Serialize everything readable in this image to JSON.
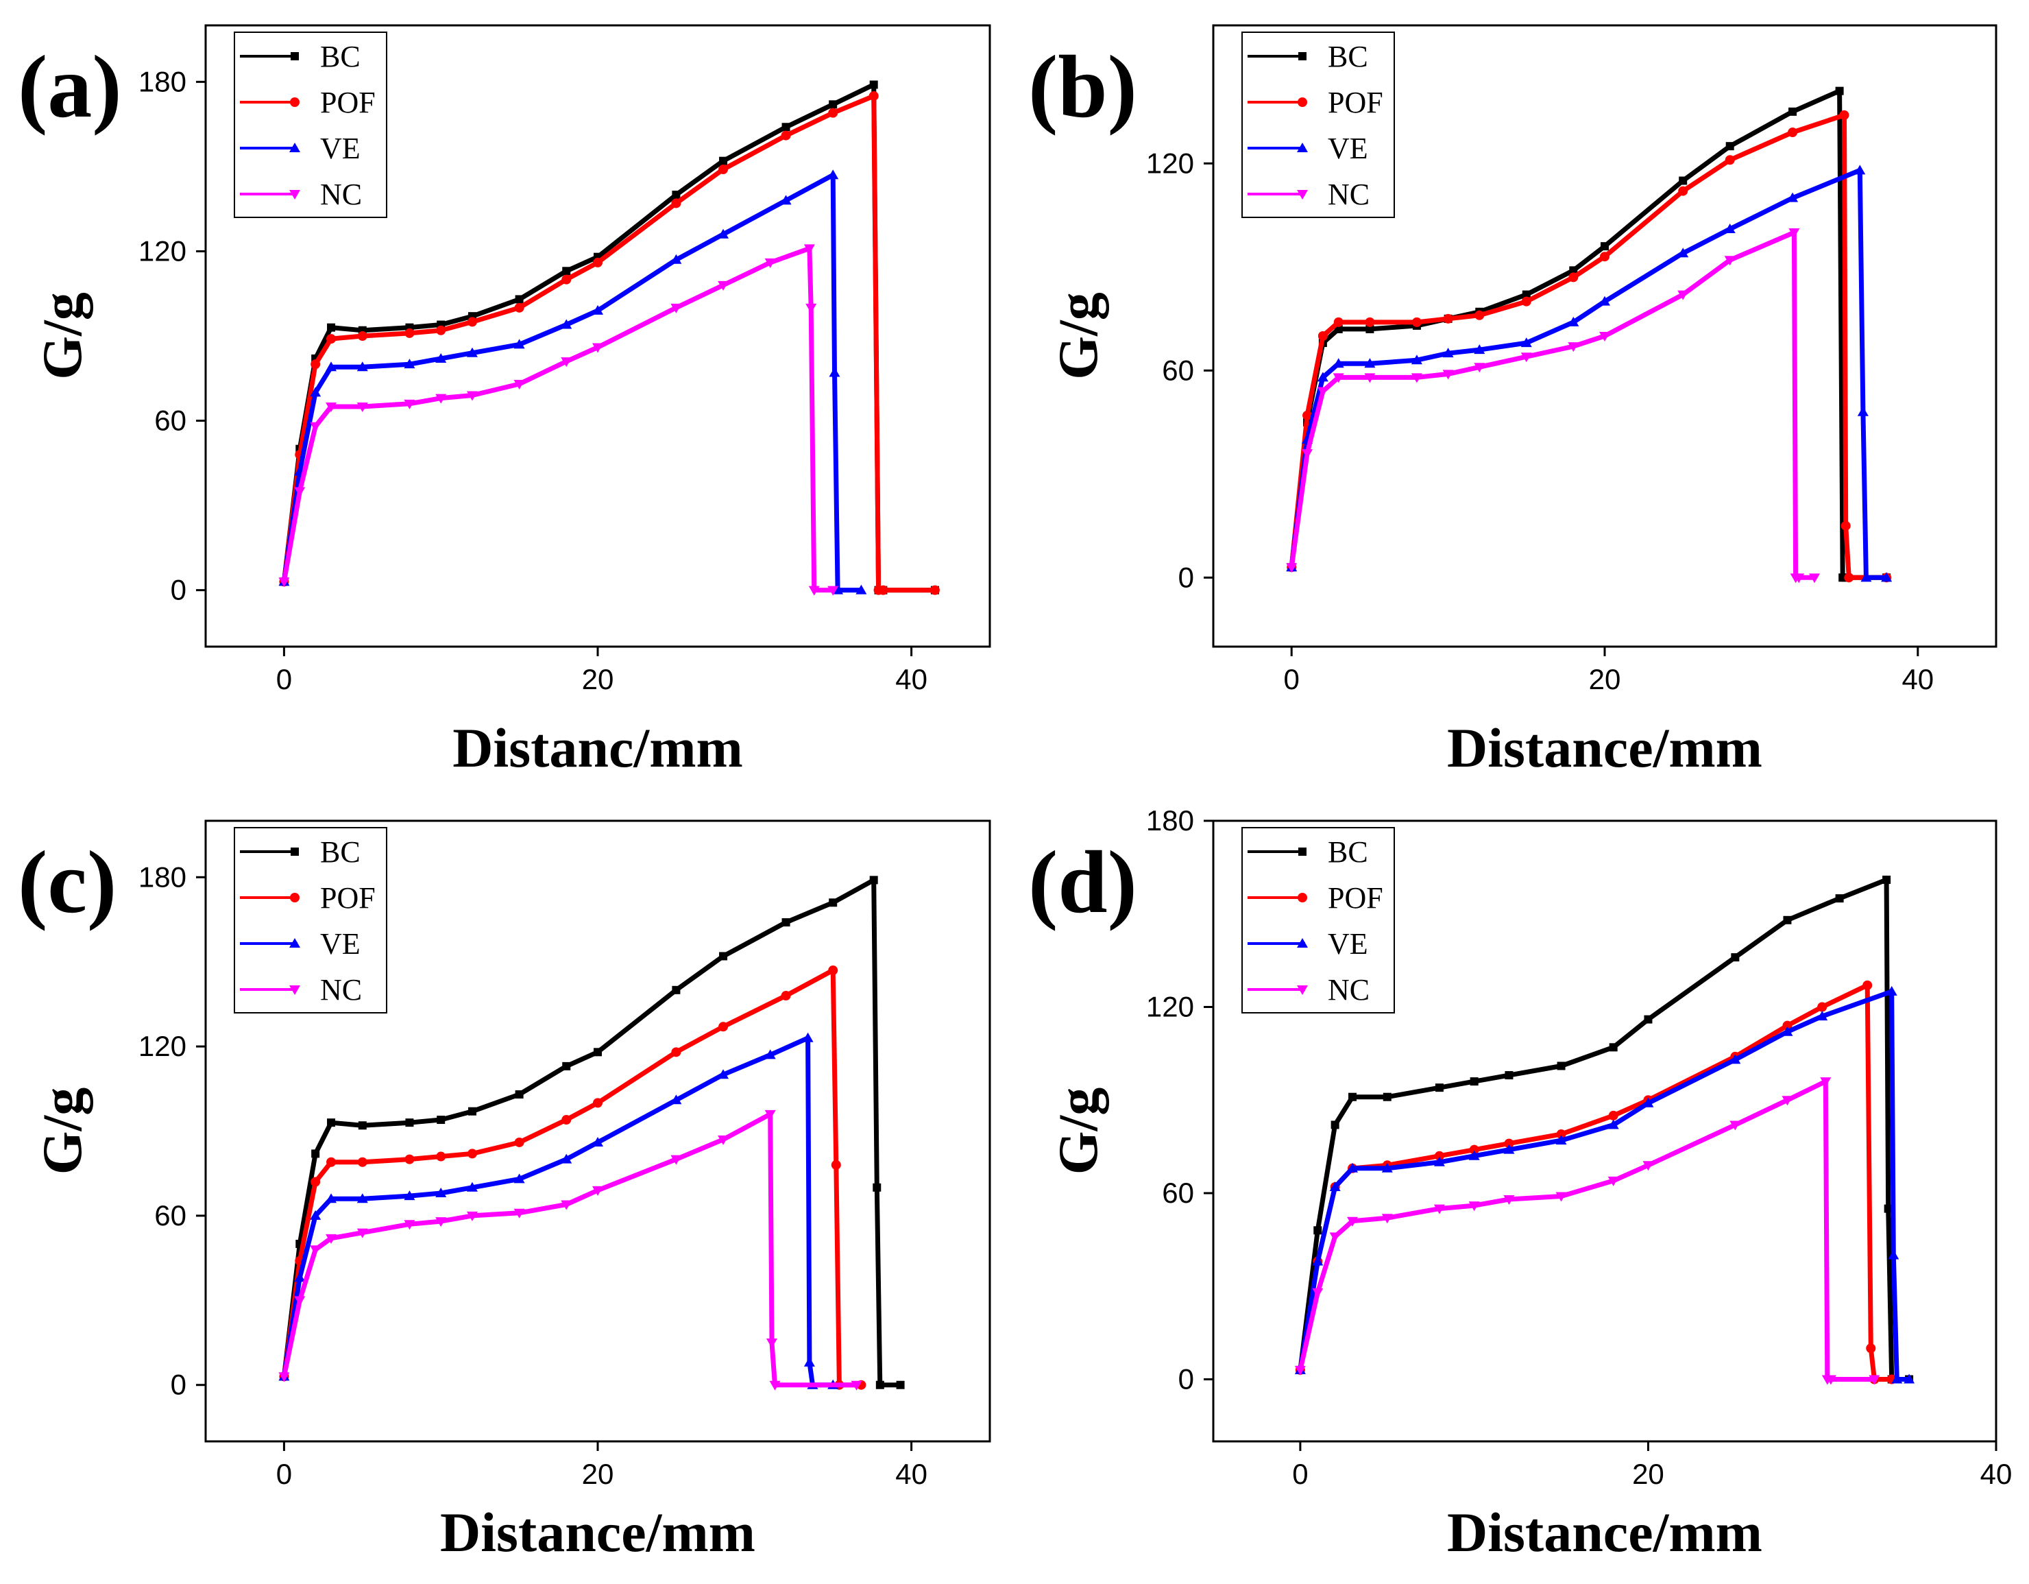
{
  "figure": {
    "panel_labels": [
      "(a)",
      "(b)",
      "(c)",
      "(d)"
    ]
  },
  "series_colors": {
    "BC": "#000000",
    "POF": "#ff0000",
    "VE": "#0000ff",
    "NC": "#ff00ff"
  },
  "chart_data": [
    {
      "panel": "(a)",
      "type": "line",
      "xlabel": "Distanc/mm",
      "ylabel": "G/g",
      "xlim": [
        -5,
        45
      ],
      "ylim": [
        -20,
        200
      ],
      "xticks": [
        0,
        20,
        40
      ],
      "yticks": [
        0,
        60,
        120,
        180
      ],
      "legend": [
        "BC",
        "POF",
        "VE",
        "NC"
      ],
      "series": [
        {
          "name": "BC",
          "x": [
            0,
            1,
            2,
            3,
            5,
            8,
            10,
            12,
            15,
            18,
            20,
            25,
            28,
            32,
            35,
            37.6,
            37.9,
            38.2,
            41.5
          ],
          "y": [
            3,
            50,
            82,
            93,
            92,
            93,
            94,
            97,
            103,
            113,
            118,
            140,
            152,
            164,
            172,
            179,
            0,
            0,
            0
          ]
        },
        {
          "name": "POF",
          "x": [
            0,
            1,
            2,
            3,
            5,
            8,
            10,
            12,
            15,
            18,
            20,
            25,
            28,
            32,
            35,
            37.6,
            37.9,
            38.2,
            41.5
          ],
          "y": [
            3,
            48,
            80,
            89,
            90,
            91,
            92,
            95,
            100,
            110,
            116,
            137,
            149,
            161,
            169,
            175,
            0,
            0,
            0
          ]
        },
        {
          "name": "VE",
          "x": [
            0,
            1,
            2,
            3,
            5,
            8,
            10,
            12,
            15,
            18,
            20,
            25,
            28,
            32,
            35,
            35.1,
            35.3,
            36.8
          ],
          "y": [
            3,
            42,
            70,
            79,
            79,
            80,
            82,
            84,
            87,
            94,
            99,
            117,
            126,
            138,
            147,
            77,
            0,
            0
          ]
        },
        {
          "name": "NC",
          "x": [
            0,
            1,
            2,
            3,
            5,
            8,
            10,
            12,
            15,
            18,
            20,
            25,
            28,
            31,
            33.5,
            33.6,
            33.8,
            35
          ],
          "y": [
            3,
            35,
            58,
            65,
            65,
            66,
            68,
            69,
            73,
            81,
            86,
            100,
            108,
            116,
            121,
            100,
            0,
            0
          ]
        }
      ]
    },
    {
      "panel": "(b)",
      "type": "line",
      "xlabel": "Distance/mm",
      "ylabel": "G/g",
      "xlim": [
        -5,
        45
      ],
      "ylim": [
        -20,
        160
      ],
      "xticks": [
        0,
        20,
        40
      ],
      "yticks": [
        0,
        60,
        120
      ],
      "legend": [
        "BC",
        "POF",
        "VE",
        "NC"
      ],
      "series": [
        {
          "name": "BC",
          "x": [
            0,
            1,
            2,
            3,
            5,
            8,
            10,
            12,
            15,
            18,
            20,
            25,
            28,
            32,
            35,
            35.2,
            35.4,
            38
          ],
          "y": [
            3,
            45,
            68,
            72,
            72,
            73,
            75,
            77,
            82,
            89,
            96,
            115,
            125,
            135,
            141,
            0,
            0,
            0
          ]
        },
        {
          "name": "POF",
          "x": [
            0,
            1,
            2,
            3,
            5,
            8,
            10,
            12,
            15,
            18,
            20,
            25,
            28,
            32,
            35.3,
            35.4,
            35.6,
            38
          ],
          "y": [
            3,
            47,
            70,
            74,
            74,
            74,
            75,
            76,
            80,
            87,
            93,
            112,
            121,
            129,
            134,
            15,
            0,
            0
          ]
        },
        {
          "name": "VE",
          "x": [
            0,
            1,
            2,
            3,
            5,
            8,
            10,
            12,
            15,
            18,
            20,
            25,
            28,
            32,
            36.3,
            36.5,
            36.7,
            38
          ],
          "y": [
            3,
            40,
            58,
            62,
            62,
            63,
            65,
            66,
            68,
            74,
            80,
            94,
            101,
            110,
            118,
            48,
            0,
            0
          ]
        },
        {
          "name": "NC",
          "x": [
            0,
            1,
            2,
            3,
            5,
            8,
            10,
            12,
            15,
            18,
            20,
            25,
            28,
            32.1,
            32.2,
            32.4,
            33.4
          ],
          "y": [
            3,
            36,
            54,
            58,
            58,
            58,
            59,
            61,
            64,
            67,
            70,
            82,
            92,
            100,
            0,
            0,
            0
          ]
        }
      ]
    },
    {
      "panel": "(c)",
      "type": "line",
      "xlabel": "Distance/mm",
      "ylabel": "G/g",
      "xlim": [
        -5,
        45
      ],
      "ylim": [
        -20,
        200
      ],
      "xticks": [
        0,
        20,
        40
      ],
      "yticks": [
        0,
        60,
        120,
        180
      ],
      "legend": [
        "BC",
        "POF",
        "VE",
        "NC"
      ],
      "series": [
        {
          "name": "BC",
          "x": [
            0,
            1,
            2,
            3,
            5,
            8,
            10,
            12,
            15,
            18,
            20,
            25,
            28,
            32,
            35,
            37.6,
            37.8,
            38,
            39.3
          ],
          "y": [
            3,
            50,
            82,
            93,
            92,
            93,
            94,
            97,
            103,
            113,
            118,
            140,
            152,
            164,
            171,
            179,
            70,
            0,
            0
          ]
        },
        {
          "name": "POF",
          "x": [
            0,
            1,
            2,
            3,
            5,
            8,
            10,
            12,
            15,
            18,
            20,
            25,
            28,
            32,
            35,
            35.2,
            35.4,
            36.8
          ],
          "y": [
            3,
            44,
            72,
            79,
            79,
            80,
            81,
            82,
            86,
            94,
            100,
            118,
            127,
            138,
            147,
            78,
            0,
            0
          ]
        },
        {
          "name": "VE",
          "x": [
            0,
            1,
            2,
            3,
            5,
            8,
            10,
            12,
            15,
            18,
            20,
            25,
            28,
            31,
            33.4,
            33.5,
            33.7,
            35
          ],
          "y": [
            3,
            38,
            60,
            66,
            66,
            67,
            68,
            70,
            73,
            80,
            86,
            101,
            110,
            117,
            123,
            8,
            0,
            0
          ]
        },
        {
          "name": "NC",
          "x": [
            0,
            1,
            2,
            3,
            5,
            8,
            10,
            12,
            15,
            18,
            20,
            25,
            28,
            31,
            31.1,
            31.3,
            36.5
          ],
          "y": [
            3,
            30,
            48,
            52,
            54,
            57,
            58,
            60,
            61,
            64,
            69,
            80,
            87,
            96,
            15,
            0,
            0
          ]
        }
      ]
    },
    {
      "panel": "(d)",
      "type": "line",
      "xlabel": "Distance/mm",
      "ylabel": "G/g",
      "xlim": [
        -5,
        40
      ],
      "ylim": [
        -20,
        180
      ],
      "xticks": [
        0,
        20,
        40
      ],
      "yticks": [
        0,
        60,
        120,
        180
      ],
      "legend": [
        "BC",
        "POF",
        "VE",
        "NC"
      ],
      "series": [
        {
          "name": "BC",
          "x": [
            0,
            1,
            2,
            3,
            5,
            8,
            10,
            12,
            15,
            18,
            20,
            25,
            28,
            31,
            33.7,
            33.8,
            34,
            35
          ],
          "y": [
            3,
            48,
            82,
            91,
            91,
            94,
            96,
            98,
            101,
            107,
            116,
            136,
            148,
            155,
            161,
            55,
            0,
            0
          ]
        },
        {
          "name": "POF",
          "x": [
            0,
            1,
            2,
            3,
            5,
            8,
            10,
            12,
            15,
            18,
            20,
            25,
            28,
            30,
            32.6,
            32.8,
            33,
            34
          ],
          "y": [
            3,
            38,
            62,
            68,
            69,
            72,
            74,
            76,
            79,
            85,
            90,
            104,
            114,
            120,
            127,
            10,
            0,
            0
          ]
        },
        {
          "name": "VE",
          "x": [
            0,
            1,
            2,
            3,
            5,
            8,
            10,
            12,
            15,
            18,
            20,
            25,
            28,
            30,
            34,
            34.1,
            34.3,
            35
          ],
          "y": [
            3,
            38,
            62,
            68,
            68,
            70,
            72,
            74,
            77,
            82,
            89,
            103,
            112,
            117,
            125,
            40,
            0,
            0
          ]
        },
        {
          "name": "NC",
          "x": [
            0,
            1,
            2,
            3,
            5,
            8,
            10,
            12,
            15,
            18,
            20,
            25,
            28,
            30.2,
            30.3,
            30.5,
            33
          ],
          "y": [
            3,
            28,
            46,
            51,
            52,
            55,
            56,
            58,
            59,
            64,
            69,
            82,
            90,
            96,
            0,
            0,
            0
          ]
        }
      ]
    }
  ]
}
